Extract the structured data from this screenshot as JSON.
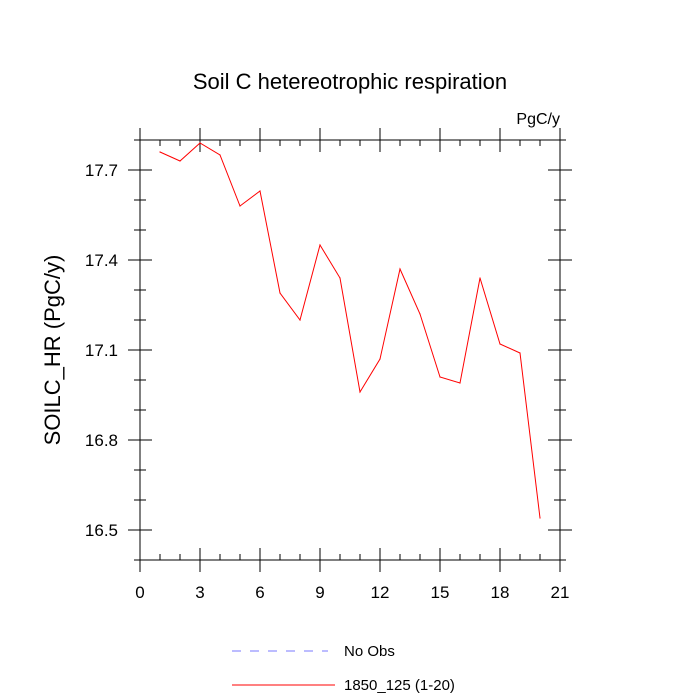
{
  "chart_data": {
    "type": "line",
    "title": "Soil C hetereotrophic respiration",
    "units": "PgC/y",
    "xlabel": "",
    "ylabel": "SOILC_HR  (PgC/y)",
    "xlim": [
      0,
      21
    ],
    "ylim": [
      16.4,
      17.8
    ],
    "xticks": [
      0,
      3,
      6,
      9,
      12,
      15,
      18,
      21
    ],
    "xtick_labels": [
      "0",
      "3",
      "6",
      "9",
      "12",
      "15",
      "18",
      "21"
    ],
    "xminor_step": 1,
    "yticks": [
      16.5,
      16.8,
      17.1,
      17.4,
      17.7
    ],
    "ytick_labels": [
      "16.5",
      "16.8",
      "17.1",
      "17.4",
      "17.7"
    ],
    "yminor_step": 0.1,
    "series": [
      {
        "name": "1850_125 (1-20)",
        "color": "#ff0000",
        "style": "solid",
        "x": [
          1,
          2,
          3,
          4,
          5,
          6,
          7,
          8,
          9,
          10,
          11,
          12,
          13,
          14,
          15,
          16,
          17,
          18,
          19,
          20
        ],
        "values": [
          17.76,
          17.73,
          17.79,
          17.75,
          17.58,
          17.63,
          17.29,
          17.2,
          17.45,
          17.34,
          16.96,
          17.07,
          17.37,
          17.22,
          17.01,
          16.99,
          17.34,
          17.12,
          17.09,
          16.54
        ]
      }
    ],
    "legend": [
      {
        "label": "No Obs",
        "color": "#7a7aff",
        "style": "dashed"
      },
      {
        "label": "1850_125 (1-20)",
        "color": "#ff0000",
        "style": "solid"
      }
    ],
    "legend_position": "bottom-center",
    "grid": false
  }
}
